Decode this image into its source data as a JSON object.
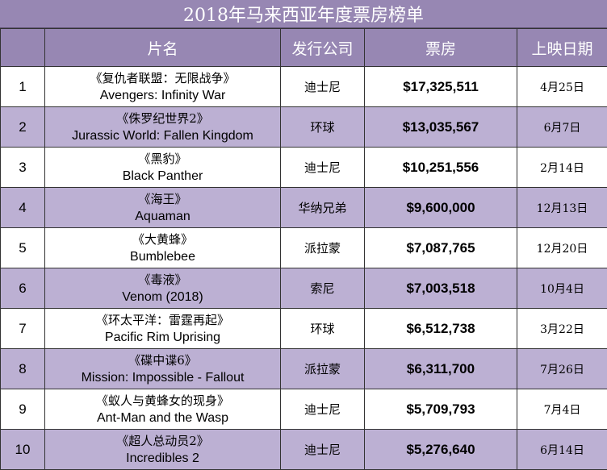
{
  "title": "2018年马来西亚年度票房榜单",
  "headers": {
    "rank": "",
    "film": "片名",
    "company": "发行公司",
    "gross": "票房",
    "date": "上映日期"
  },
  "rows": [
    {
      "rank": "1",
      "cn": "《复仇者联盟：无限战争》",
      "en": "Avengers: Infinity War",
      "company": "迪士尼",
      "gross": "$17,325,511",
      "date": "4月25日"
    },
    {
      "rank": "2",
      "cn": "《侏罗纪世界2》",
      "en": "Jurassic World: Fallen Kingdom",
      "company": "环球",
      "gross": "$13,035,567",
      "date": "6月7日"
    },
    {
      "rank": "3",
      "cn": "《黑豹》",
      "en": "Black Panther",
      "company": "迪士尼",
      "gross": "$10,251,556",
      "date": "2月14日"
    },
    {
      "rank": "4",
      "cn": "《海王》",
      "en": "Aquaman",
      "company": "华纳兄弟",
      "gross": "$9,600,000",
      "date": "12月13日"
    },
    {
      "rank": "5",
      "cn": "《大黄蜂》",
      "en": "Bumblebee",
      "company": "派拉蒙",
      "gross": "$7,087,765",
      "date": "12月20日"
    },
    {
      "rank": "6",
      "cn": "《毒液》",
      "en": "Venom (2018)",
      "company": "索尼",
      "gross": "$7,003,518",
      "date": "10月4日"
    },
    {
      "rank": "7",
      "cn": "《环太平洋：雷霆再起》",
      "en": "Pacific Rim Uprising",
      "company": "环球",
      "gross": "$6,512,738",
      "date": "3月22日"
    },
    {
      "rank": "8",
      "cn": "《碟中谍6》",
      "en": "Mission: Impossible - Fallout",
      "company": "派拉蒙",
      "gross": "$6,311,700",
      "date": "7月26日"
    },
    {
      "rank": "9",
      "cn": "《蚁人与黄蜂女的现身》",
      "en": "Ant-Man and the Wasp",
      "company": "迪士尼",
      "gross": "$5,709,793",
      "date": "7月4日"
    },
    {
      "rank": "10",
      "cn": "《超人总动员2》",
      "en": "Incredibles 2",
      "company": "迪士尼",
      "gross": "$5,276,640",
      "date": "6月14日"
    }
  ],
  "colors": {
    "header_bg": "#9787b3",
    "alt_row_bg": "#bcb0d3",
    "row_bg": "#ffffff"
  }
}
